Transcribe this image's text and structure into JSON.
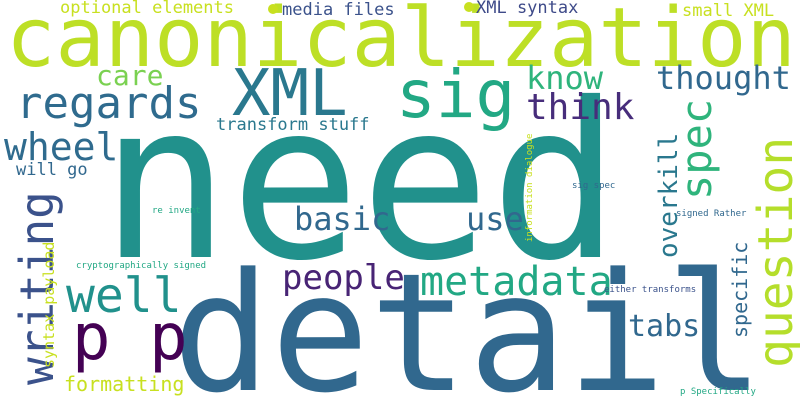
{
  "words": [
    {
      "text": "need",
      "color": "#21918c"
    },
    {
      "text": "detail",
      "color": "#31688e"
    },
    {
      "text": "canonicalization",
      "color": "#bddf26"
    },
    {
      "text": "XML",
      "color": "#2a788e"
    },
    {
      "text": "sig",
      "color": "#22a884"
    },
    {
      "text": "regards",
      "color": "#2f6b8e"
    },
    {
      "text": "question",
      "color": "#b5de2b"
    },
    {
      "text": "writing",
      "color": "#3b528b"
    },
    {
      "text": "well",
      "color": "#21918c"
    },
    {
      "text": "spec",
      "color": "#2fb47c"
    },
    {
      "text": "p p",
      "color": "#440154"
    },
    {
      "text": "metadata",
      "color": "#22a884"
    },
    {
      "text": "wheel",
      "color": "#2f6b8e"
    },
    {
      "text": "people",
      "color": "#482475"
    },
    {
      "text": "think",
      "color": "#472d7b"
    },
    {
      "text": "know",
      "color": "#2fb47c"
    },
    {
      "text": "thought",
      "color": "#31688e"
    },
    {
      "text": "basic",
      "color": "#31688e"
    },
    {
      "text": "use",
      "color": "#31688e"
    },
    {
      "text": "care",
      "color": "#7ad151"
    },
    {
      "text": "overkill",
      "color": "#2a788e"
    },
    {
      "text": "tabs",
      "color": "#31688e"
    },
    {
      "text": "specific",
      "color": "#31688e"
    },
    {
      "text": "formatting",
      "color": "#c8e020"
    },
    {
      "text": "syntax payload",
      "color": "#c8e020"
    },
    {
      "text": "transform stuff",
      "color": "#2a788e"
    },
    {
      "text": "optional elements",
      "color": "#c8e020"
    },
    {
      "text": "media files",
      "color": "#3b528b"
    },
    {
      "text": "XML syntax",
      "color": "#3e4a89"
    },
    {
      "text": "small XML",
      "color": "#c8e020"
    },
    {
      "text": "will go",
      "color": "#31688e"
    },
    {
      "text": "information dialogue",
      "color": "#c8e020"
    },
    {
      "text": "sig spec",
      "color": "#31688e"
    },
    {
      "text": "re invent",
      "color": "#22a884"
    },
    {
      "text": "signed Rather",
      "color": "#31688e"
    },
    {
      "text": "cryptographically signed",
      "color": "#22a884"
    },
    {
      "text": "either transforms",
      "color": "#3b528b"
    },
    {
      "text": "p Specifically",
      "color": "#22a884"
    }
  ]
}
